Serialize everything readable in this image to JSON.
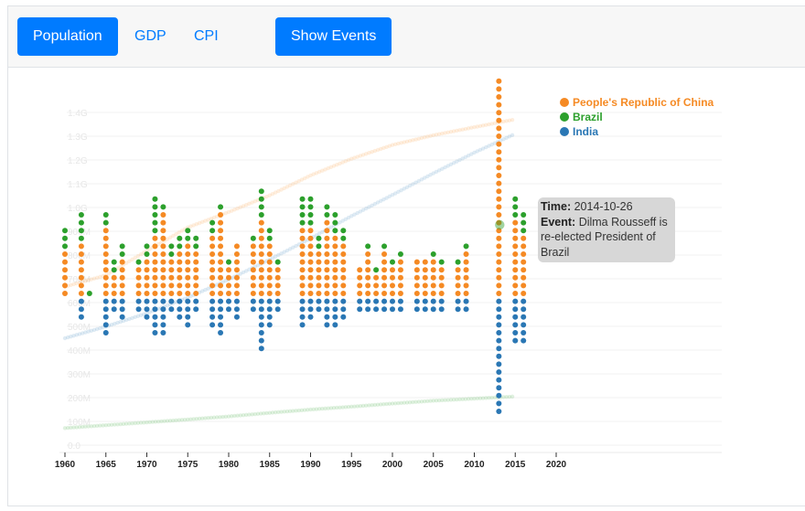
{
  "toolbar": {
    "population_label": "Population",
    "gdp_label": "GDP",
    "cpi_label": "CPI",
    "show_events_label": "Show Events"
  },
  "colors": {
    "china": "#f58a24",
    "brazil": "#2ca02c",
    "india": "#2a77b4",
    "primary": "#007bff"
  },
  "tooltip": {
    "time_label": "Time:",
    "time_value": "2014-10-26",
    "event_label": "Event:",
    "event_value": "Dilma Rousseff is re-elected President of Brazil"
  },
  "chart_data": {
    "type": "scatter",
    "title": "",
    "xlabel": "",
    "ylabel": "",
    "xlim": [
      1960,
      2020
    ],
    "ylim": [
      0,
      1450000000
    ],
    "x_ticks": [
      "1960",
      "1965",
      "1970",
      "1975",
      "1980",
      "1985",
      "1990",
      "1995",
      "2000",
      "2005",
      "2010",
      "2015",
      "2020"
    ],
    "y_ticks": [
      "0.0",
      "100M",
      "200M",
      "300M",
      "400M",
      "500M",
      "600M",
      "700M",
      "800M",
      "900M",
      "1.0G",
      "1.1G",
      "1.2G",
      "1.3G",
      "1.4G"
    ],
    "legend_position": "top-right",
    "grid": true,
    "series": [
      {
        "name": "People's Republic of China",
        "color_key": "china",
        "x": [
          1960,
          1965,
          1970,
          1975,
          1980,
          1985,
          1990,
          1995,
          2000,
          2005,
          2010,
          2015
        ],
        "values": [
          667000000,
          715000000,
          818000000,
          916000000,
          981000000,
          1051000000,
          1135000000,
          1205000000,
          1263000000,
          1304000000,
          1338000000,
          1371000000
        ]
      },
      {
        "name": "Brazil",
        "color_key": "brazil",
        "x": [
          1960,
          1965,
          1970,
          1975,
          1980,
          1985,
          1990,
          1995,
          2000,
          2005,
          2010,
          2015
        ],
        "values": [
          72000000,
          84000000,
          96000000,
          108000000,
          121000000,
          136000000,
          150000000,
          162000000,
          175000000,
          187000000,
          196000000,
          205000000
        ]
      },
      {
        "name": "India",
        "color_key": "india",
        "x": [
          1960,
          1965,
          1970,
          1975,
          1980,
          1985,
          1990,
          1995,
          2000,
          2005,
          2010,
          2015
        ],
        "values": [
          450000000,
          499000000,
          555000000,
          621000000,
          697000000,
          781000000,
          870000000,
          964000000,
          1053000000,
          1144000000,
          1231000000,
          1310000000
        ]
      }
    ],
    "hover_point": {
      "x": 2014,
      "series": "Brazil"
    }
  }
}
